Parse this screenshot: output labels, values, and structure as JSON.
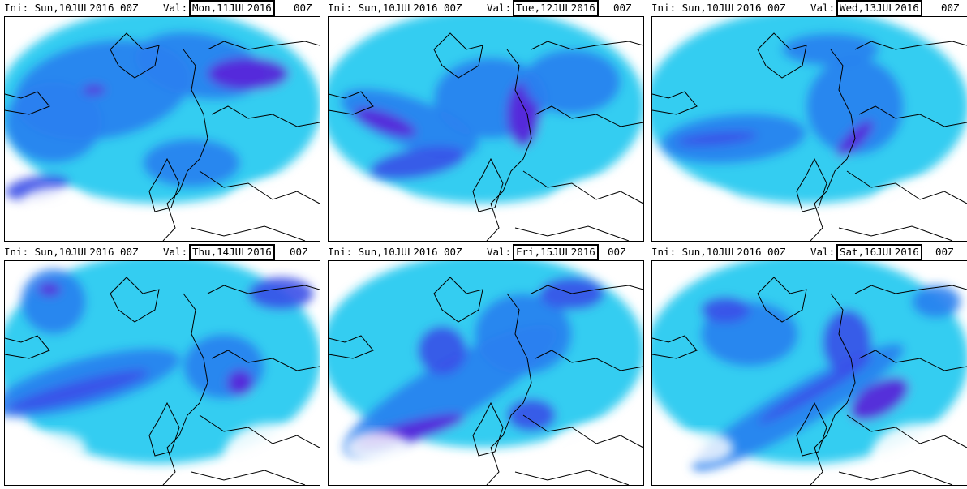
{
  "panels": [
    {
      "ini_label": "Ini:",
      "ini": "Sun,10JUL2016 00Z",
      "val_label": "Val:",
      "valid": "Mon,11JUL2016",
      "valid_suffix": "00Z"
    },
    {
      "ini_label": "Ini:",
      "ini": "Sun,10JUL2016 00Z",
      "val_label": "Val:",
      "valid": "Tue,12JUL2016",
      "valid_suffix": "00Z"
    },
    {
      "ini_label": "Ini:",
      "ini": "Sun,10JUL2016 00Z",
      "val_label": "Val:",
      "valid": "Wed,13JUL2016",
      "valid_suffix": "00Z"
    },
    {
      "ini_label": "Ini:",
      "ini": "Sun,10JUL2016 00Z",
      "val_label": "Val:",
      "valid": "Thu,14JUL2016",
      "valid_suffix": "00Z"
    },
    {
      "ini_label": "Ini:",
      "ini": "Sun,10JUL2016 00Z",
      "val_label": "Val:",
      "valid": "Fri,15JUL2016",
      "valid_suffix": "00Z"
    },
    {
      "ini_label": "Ini:",
      "ini": "Sun,10JUL2016 00Z",
      "val_label": "Val:",
      "valid": "Sat,16JUL2016",
      "valid_suffix": "00Z"
    }
  ],
  "colors": {
    "light": "#2fe0c8",
    "cyan": "#1ec8f0",
    "blue": "#2a7ff0",
    "mid": "#3a4fe8",
    "deep": "#5a20d8",
    "peak": "#b01ab8",
    "coast": "#000000"
  }
}
